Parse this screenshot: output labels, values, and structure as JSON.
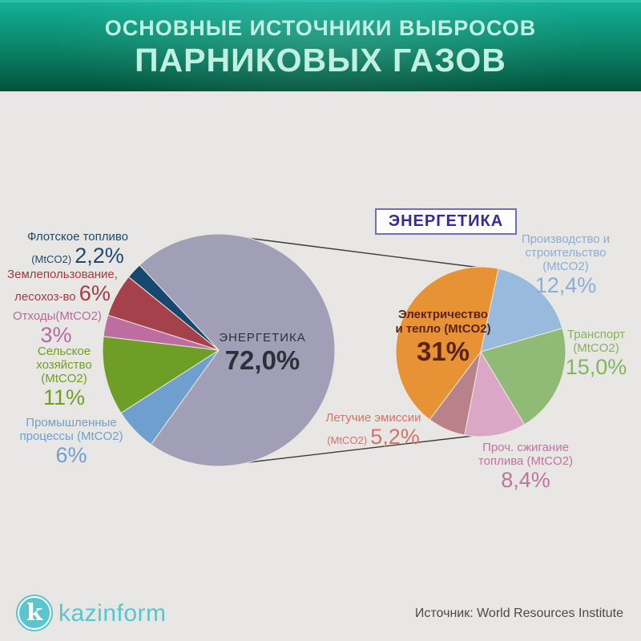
{
  "header": {
    "line1": "ОСНОВНЫЕ ИСТОЧНИКИ ВЫБРОСОВ",
    "line2": "ПАРНИКОВЫХ ГАЗОВ"
  },
  "detail_box": {
    "label": "ЭНЕРГЕТИКА"
  },
  "main_pie_center": {
    "title": "ЭНЕРГЕТИКА",
    "pct": "72,0%"
  },
  "detail_pie_center": {
    "l1": "Электричество",
    "l2": "и тепло (MtCO2)",
    "pct": "31%"
  },
  "labels": {
    "flot": {
      "l1": "Флотское топливо",
      "unit": "(MtCO2)",
      "pct": "2,2%"
    },
    "zeml": {
      "l1": "Землепользование,",
      "l2": "лесохоз-во",
      "pct": "6%"
    },
    "otkhody": {
      "l1": "Отходы(MtCO2)",
      "pct": "3%"
    },
    "selskoe": {
      "l1": "Сельское",
      "l2": "хозяйство",
      "l3": "(MtCO2)",
      "pct": "11%"
    },
    "prom": {
      "l1": "Промышленные",
      "l2": "процессы (MtCO2)",
      "pct": "6%"
    },
    "prod": {
      "l1": "Производство и",
      "l2": "строительство (MtCO2)",
      "pct": "12,4%"
    },
    "transport": {
      "l1": "Транспорт",
      "l2": "(MtCO2)",
      "pct": "15,0%"
    },
    "proch": {
      "l1": "Проч. сжигание",
      "l2": "топлива (MtCO2)",
      "pct": "8,4%"
    },
    "letuchie": {
      "l1": "Летучие эмиссии",
      "unit": "(MtCO2)",
      "pct": "5,2%"
    }
  },
  "footer": {
    "logo_letter": "k",
    "logo_text": "kazinform",
    "source": "Источник: World Resources Institute"
  },
  "colors": {
    "header_text": "#bff0e2",
    "flot": "#1b4a74",
    "zeml": "#a43b44",
    "otkhody": "#b5699f",
    "selskoe": "#6f9e27",
    "prom": "#6f9fce",
    "prod": "#8badd6",
    "transport": "#84b35e",
    "proch": "#c0739e",
    "letuchie": "#d3736a",
    "main_center": "#2f2f3a",
    "detail_center": "#5c2410",
    "box_text": "#3b2a96",
    "box_border": "#7470ad",
    "brand": "#5ac5cf",
    "source_text": "#4a4a4a",
    "callout_line": "#3b3b3b",
    "slice_separator": "#eee8de"
  },
  "chart_data": [
    {
      "type": "pie",
      "title": "Основные источники выбросов парниковых газов",
      "units": "% (MtCO2)",
      "start_angle_deg": 317,
      "direction": "clockwise",
      "legend_position": "around",
      "slices": [
        {
          "label": "ЭНЕРГЕТИКА",
          "value": 72.0,
          "display": "72,0%",
          "color": "#a09fb7"
        },
        {
          "label": "Промышленные процессы (MtCO2)",
          "value": 6,
          "display": "6%",
          "color": "#6f9fce"
        },
        {
          "label": "Сельское хозяйство (MtCO2)",
          "value": 11,
          "display": "11%",
          "color": "#6f9e27"
        },
        {
          "label": "Отходы (MtCO2)",
          "value": 3,
          "display": "3%",
          "color": "#bd6d9f"
        },
        {
          "label": "Землепользование, лесохоз-во",
          "value": 6,
          "display": "6%",
          "color": "#a4414a"
        },
        {
          "label": "Флотское топливо (MtCO2)",
          "value": 2.2,
          "display": "2,2%",
          "color": "#17486f"
        }
      ]
    },
    {
      "type": "pie",
      "title": "ЭНЕРГЕТИКА",
      "units": "% (MtCO2)",
      "start_angle_deg": 12,
      "direction": "clockwise",
      "total": 72,
      "legend_position": "around",
      "slices": [
        {
          "label": "Производство и строительство (MtCO2)",
          "value": 12.4,
          "display": "12,4%",
          "color": "#98badd"
        },
        {
          "label": "Транспорт (MtCO2)",
          "value": 15.0,
          "display": "15,0%",
          "color": "#90bb77"
        },
        {
          "label": "Проч. сжигание топлива (MtCO2)",
          "value": 8.4,
          "display": "8,4%",
          "color": "#dba7c7"
        },
        {
          "label": "Летучие эмиссии (MtCO2)",
          "value": 5.2,
          "display": "5,2%",
          "color": "#b9828a"
        },
        {
          "label": "Электричество и тепло (MtCO2)",
          "value": 31,
          "display": "31%",
          "color": "#e89236"
        }
      ]
    }
  ]
}
